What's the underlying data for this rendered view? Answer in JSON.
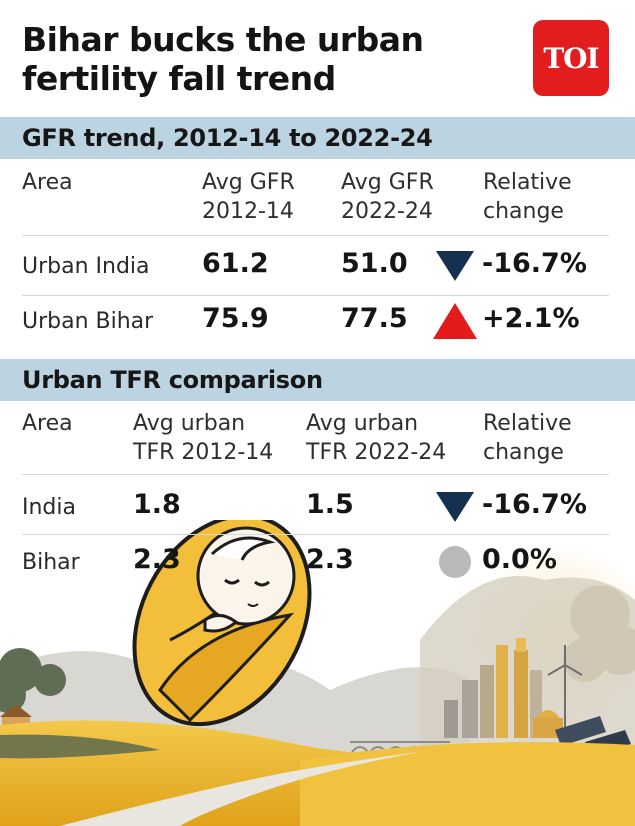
{
  "title": "Bihar bucks the urban fertility fall trend",
  "logo_text": "TOI",
  "colors": {
    "down": "#16314f",
    "up": "#e31b1b",
    "flat": "#b9b9b9",
    "band": "#bcd3e2",
    "brand": "#e11d1d"
  },
  "chart_data": [
    {
      "type": "table",
      "title": "GFR trend, 2012-14 to 2022-24",
      "columns": [
        "Area",
        "Avg GFR 2012-14",
        "Avg GFR 2022-24",
        "Relative change"
      ],
      "rows": [
        {
          "area": "Urban India",
          "v1": "61.2",
          "v2": "51.0",
          "change": "-16.7%",
          "indicator": "down-triangle"
        },
        {
          "area": "Urban Bihar",
          "v1": "75.9",
          "v2": "77.5",
          "change": "+2.1%",
          "indicator": "up-triangle"
        }
      ]
    },
    {
      "type": "table",
      "title": "Urban TFR comparison",
      "columns": [
        "Area",
        "Avg urban TFR 2012-14",
        "Avg urban TFR 2022-24",
        "Relative change"
      ],
      "rows": [
        {
          "area": "India",
          "v1": "1.8",
          "v2": "1.5",
          "change": "-16.7%",
          "indicator": "down-triangle"
        },
        {
          "area": "Bihar",
          "v1": "2.3",
          "v2": "2.3",
          "change": "0.0%",
          "indicator": "circle"
        }
      ]
    }
  ],
  "hdr": {
    "gfr": {
      "area": "Area",
      "c1a": "Avg GFR",
      "c1b": "2012-14",
      "c2a": "Avg GFR",
      "c2b": "2022-24",
      "c3a": "Relative",
      "c3b": "change"
    },
    "tfr": {
      "area": "Area",
      "c1a": "Avg urban",
      "c1b": "TFR 2012-14",
      "c2a": "Avg urban",
      "c2b": "TFR 2022-24",
      "c3a": "Relative",
      "c3b": "change"
    }
  },
  "illustration": {
    "icons": [
      "baby-icon",
      "city-skyline-icon",
      "wind-turbine-icon",
      "solar-panel-icon",
      "village-hut-icon",
      "bridge-icon",
      "sun-icon"
    ]
  }
}
